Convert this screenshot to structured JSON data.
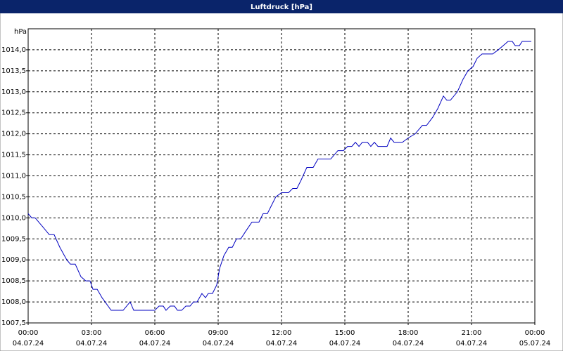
{
  "chart_data": {
    "type": "line",
    "title": "Luftdruck [hPa]",
    "y_label": "hPa",
    "x": [
      0,
      0.17,
      0.33,
      0.67,
      1,
      1.23,
      1.5,
      1.83,
      2,
      2.23,
      2.5,
      2.73,
      2.93,
      3.07,
      3.27,
      3.5,
      3.93,
      4.5,
      4.83,
      5,
      6,
      6.2,
      6.4,
      6.53,
      6.73,
      6.93,
      7.07,
      7.27,
      7.47,
      7.67,
      7.83,
      8,
      8.23,
      8.4,
      8.53,
      8.73,
      8.93,
      9.07,
      9.27,
      9.5,
      9.67,
      9.87,
      10.07,
      10.33,
      10.6,
      10.93,
      11.13,
      11.33,
      11.53,
      11.73,
      12,
      12.33,
      12.53,
      12.73,
      12.93,
      13.2,
      13.5,
      13.73,
      14.33,
      14.67,
      14.93,
      15.13,
      15.33,
      15.5,
      15.67,
      15.83,
      16.07,
      16.23,
      16.4,
      16.57,
      17,
      17.17,
      17.33,
      17.73,
      18,
      18.33,
      18.67,
      18.87,
      19.17,
      19.4,
      19.67,
      19.83,
      20,
      20.33,
      20.6,
      20.83,
      21.07,
      21.27,
      21.5,
      22,
      22.27,
      22.5,
      22.73,
      22.93,
      23.07,
      23.27,
      23.4,
      23.83
    ],
    "series": [
      {
        "name": "Luftdruck",
        "color": "#0000c0",
        "values": [
          1010.1,
          1010.0,
          1010.0,
          1009.8,
          1009.6,
          1009.6,
          1009.3,
          1009.0,
          1008.9,
          1008.9,
          1008.6,
          1008.5,
          1008.5,
          1008.3,
          1008.3,
          1008.1,
          1007.8,
          1007.8,
          1008.0,
          1007.8,
          1007.8,
          1007.9,
          1007.9,
          1007.8,
          1007.9,
          1007.9,
          1007.8,
          1007.8,
          1007.9,
          1007.9,
          1008.0,
          1008.0,
          1008.2,
          1008.1,
          1008.2,
          1008.2,
          1008.4,
          1008.8,
          1009.1,
          1009.3,
          1009.3,
          1009.5,
          1009.5,
          1009.7,
          1009.9,
          1009.9,
          1010.1,
          1010.1,
          1010.3,
          1010.5,
          1010.6,
          1010.6,
          1010.7,
          1010.7,
          1010.9,
          1011.2,
          1011.2,
          1011.4,
          1011.4,
          1011.6,
          1011.6,
          1011.7,
          1011.7,
          1011.8,
          1011.7,
          1011.8,
          1011.8,
          1011.7,
          1011.8,
          1011.7,
          1011.7,
          1011.9,
          1011.8,
          1011.8,
          1011.9,
          1012.0,
          1012.2,
          1012.2,
          1012.4,
          1012.6,
          1012.9,
          1012.8,
          1012.8,
          1013.0,
          1013.3,
          1013.5,
          1013.6,
          1013.8,
          1013.9,
          1013.9,
          1014.0,
          1014.1,
          1014.2,
          1014.2,
          1014.1,
          1014.1,
          1014.2,
          1014.2
        ]
      }
    ],
    "xlim": [
      0,
      24
    ],
    "xticks": [
      {
        "value": 0,
        "label": "00:00"
      },
      {
        "value": 3,
        "label": "03:00"
      },
      {
        "value": 6,
        "label": "06:00"
      },
      {
        "value": 9,
        "label": "09:00"
      },
      {
        "value": 12,
        "label": "12:00"
      },
      {
        "value": 15,
        "label": "15:00"
      },
      {
        "value": 18,
        "label": "18:00"
      },
      {
        "value": 21,
        "label": "21:00"
      },
      {
        "value": 24,
        "label": "00:00"
      }
    ],
    "xtick_dates": [
      "04.07.24",
      "04.07.24",
      "04.07.24",
      "04.07.24",
      "04.07.24",
      "04.07.24",
      "04.07.24",
      "04.07.24",
      "05.07.24"
    ],
    "ylim": [
      1007.5,
      1014.5
    ],
    "yticks": [
      {
        "value": 1007.5,
        "label": "1007,5"
      },
      {
        "value": 1008,
        "label": "1008,0"
      },
      {
        "value": 1008.5,
        "label": "1008,5"
      },
      {
        "value": 1009,
        "label": "1009,0"
      },
      {
        "value": 1009.5,
        "label": "1009,5"
      },
      {
        "value": 1010,
        "label": "1010,0"
      },
      {
        "value": 1010.5,
        "label": "1010,5"
      },
      {
        "value": 1011,
        "label": "1011,0"
      },
      {
        "value": 1011.5,
        "label": "1011,5"
      },
      {
        "value": 1012,
        "label": "1012,0"
      },
      {
        "value": 1012.5,
        "label": "1012,5"
      },
      {
        "value": 1013,
        "label": "1013,0"
      },
      {
        "value": 1013.5,
        "label": "1013,5"
      },
      {
        "value": 1014,
        "label": "1014,0"
      }
    ],
    "grid": true
  }
}
